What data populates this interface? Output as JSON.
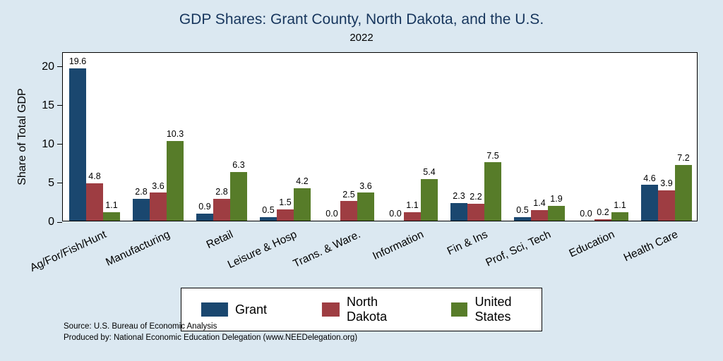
{
  "chart_data": {
    "type": "bar",
    "title": "GDP Shares: Grant County, North Dakota, and the U.S.",
    "subtitle": "2022",
    "xlabel": "",
    "ylabel": "Share of Total GDP",
    "ylim": [
      0,
      21.8
    ],
    "yticks": [
      0,
      5,
      10,
      15,
      20
    ],
    "grid": false,
    "legend_position": "bottom",
    "categories": [
      "Ag/For/Fish/Hunt",
      "Manufacturing",
      "Retail",
      "Leisure & Hosp",
      "Trans. & Ware.",
      "Information",
      "Fin & Ins",
      "Prof, Sci, Tech",
      "Education",
      "Health Care"
    ],
    "series": [
      {
        "name": "Grant",
        "color": "#1a476f",
        "values": [
          19.6,
          2.8,
          0.9,
          0.5,
          0.0,
          0.0,
          2.3,
          0.5,
          0.0,
          4.6
        ]
      },
      {
        "name": "North Dakota",
        "color": "#9e3d42",
        "values": [
          4.8,
          3.6,
          2.8,
          1.5,
          2.5,
          1.1,
          2.2,
          1.4,
          0.2,
          3.9
        ]
      },
      {
        "name": "United States",
        "color": "#577c29",
        "values": [
          1.1,
          10.3,
          6.3,
          4.2,
          3.6,
          5.4,
          7.5,
          1.9,
          1.1,
          7.2
        ]
      }
    ]
  },
  "footer": {
    "line1": "Source: U.S. Bureau of Economic Analysis",
    "line2": "Produced by: National Economic Education Delegation (www.NEEDelegation.org)"
  },
  "colors": {
    "background": "#dbe8f1",
    "plot_background": "#ffffff",
    "title": "#17365d"
  }
}
